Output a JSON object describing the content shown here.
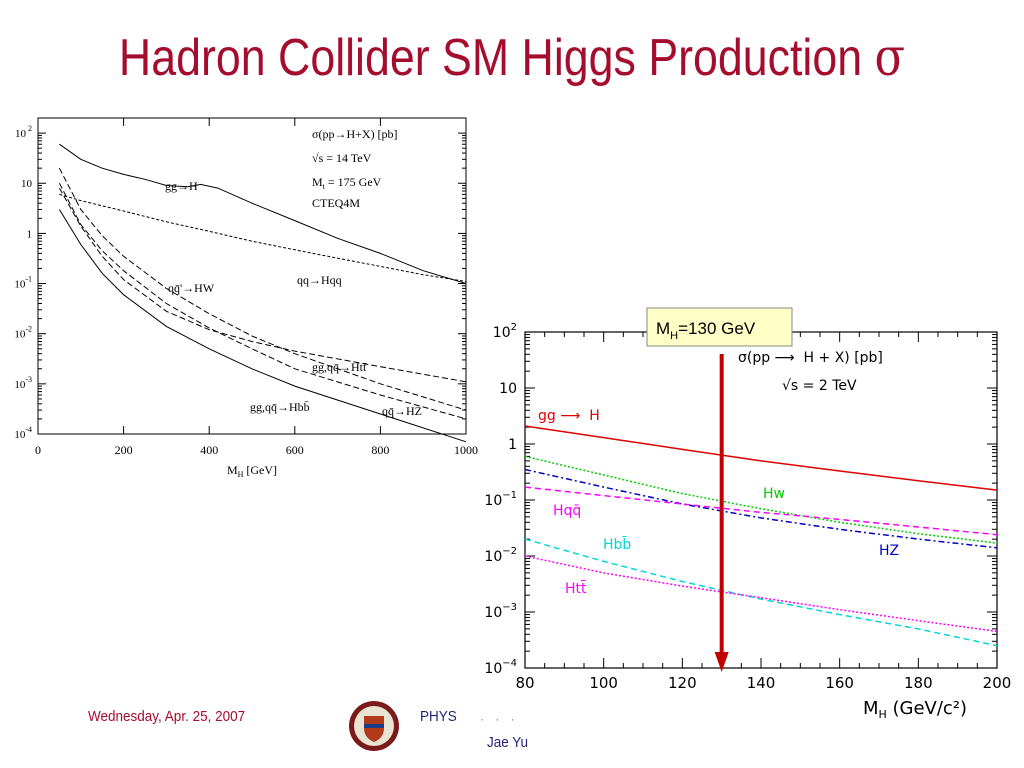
{
  "slide": {
    "title": "Hadron Collider SM Higgs Production ",
    "title_sigma": "σ",
    "footer_date": "Wednesday, Apr. 25, 2007",
    "footer_course": "PHYS",
    "footer_author": "Jae Yu",
    "footer_dots": "· · ·",
    "accent_color": "#a50d2e",
    "footer_color": "#23237a"
  },
  "annotation": {
    "label_main": "M",
    "label_sub": "H",
    "label_rest": "=130 GeV",
    "value": 130,
    "arrow_color": "#c00000",
    "box_color": "#ffffc8"
  },
  "chart_data": [
    {
      "type": "line",
      "x_scale": "linear",
      "y_scale": "log",
      "xlim": [
        0,
        1000
      ],
      "ylim": [
        0.0001,
        200
      ],
      "xlabel_main": "M",
      "xlabel_sub": "H",
      "xlabel_rest": " [GeV]",
      "x_ticks": [
        0,
        200,
        400,
        600,
        800,
        1000
      ],
      "y_ticks": [
        {
          "value": 100,
          "base": "10",
          "exp": " 2"
        },
        {
          "value": 10,
          "base": "10",
          "exp": ""
        },
        {
          "value": 1,
          "base": "1",
          "exp": ""
        },
        {
          "value": 0.1,
          "base": "10",
          "exp": "-1"
        },
        {
          "value": 0.01,
          "base": "10",
          "exp": "-2"
        },
        {
          "value": 0.001,
          "base": "10",
          "exp": "-3"
        },
        {
          "value": 0.0001,
          "base": "10",
          "exp": "-4"
        }
      ],
      "info_lines": [
        "σ(pp→H+X) [pb]",
        "√s = 14 TeV",
        "M",
        "CTEQ4M"
      ],
      "info_mt_sub": "t",
      "info_mt_rest": " = 175 GeV",
      "series": [
        {
          "name": "gg→H",
          "dash": "none",
          "x": [
            50,
            100,
            150,
            200,
            250,
            300,
            350,
            380,
            420,
            500,
            600,
            700,
            800,
            900,
            1000
          ],
          "y": [
            60,
            30,
            20,
            15,
            12,
            9,
            8.5,
            9.5,
            8,
            4,
            1.8,
            0.8,
            0.4,
            0.18,
            0.1
          ]
        },
        {
          "name": "qq→Hqq",
          "dash": "3,2",
          "x": [
            50,
            100,
            200,
            300,
            400,
            500,
            600,
            700,
            800,
            900,
            1000
          ],
          "y": [
            6,
            4.5,
            2.8,
            1.7,
            1.1,
            0.7,
            0.47,
            0.32,
            0.22,
            0.15,
            0.11
          ]
        },
        {
          "name": "qq̄'→HW",
          "dash": "6,3",
          "x": [
            50,
            100,
            150,
            200,
            300,
            400,
            500,
            600,
            800,
            1000
          ],
          "y": [
            20,
            3,
            0.9,
            0.35,
            0.08,
            0.025,
            0.009,
            0.004,
            0.001,
            0.0003
          ]
        },
        {
          "name": "qq̄→HZ",
          "dash": "6,3",
          "x": [
            50,
            100,
            150,
            200,
            300,
            400,
            500,
            600,
            800,
            1000
          ],
          "y": [
            10,
            1.5,
            0.45,
            0.18,
            0.04,
            0.013,
            0.005,
            0.002,
            0.0006,
            0.0002
          ]
        },
        {
          "name": "gg,qq̄→Htt̄",
          "dash": "6,3",
          "x": [
            50,
            100,
            150,
            200,
            300,
            400,
            500,
            600,
            800,
            1000
          ],
          "y": [
            8,
            1.4,
            0.35,
            0.12,
            0.028,
            0.012,
            0.007,
            0.0045,
            0.0022,
            0.0011
          ]
        },
        {
          "name": "gg,qq̄→Hbb̄",
          "dash": "none",
          "x": [
            50,
            100,
            150,
            200,
            300,
            400,
            500,
            600,
            800,
            1000
          ],
          "y": [
            3,
            0.6,
            0.16,
            0.06,
            0.014,
            0.005,
            0.002,
            0.0009,
            0.00025,
            7e-05
          ]
        }
      ],
      "labels": [
        {
          "text": "gg→H",
          "series": 0
        },
        {
          "text": "qq→Hqq",
          "series": 1
        },
        {
          "text": "qq̄'→HW",
          "series": 2
        },
        {
          "text": "gg,qq̄→Htt̄",
          "series": 4
        },
        {
          "text": "gg,qq̄→Hbb̄",
          "series": 5
        },
        {
          "text": "qq̄→HZ",
          "series": 3
        }
      ]
    },
    {
      "type": "line",
      "x_scale": "linear",
      "y_scale": "log",
      "xlim": [
        80,
        200
      ],
      "ylim": [
        0.0001,
        100
      ],
      "xlabel_main": "M",
      "xlabel_sub": "H",
      "xlabel_rest": " (GeV/c²)",
      "x_ticks": [
        80,
        100,
        120,
        140,
        160,
        180,
        200
      ],
      "y_ticks": [
        {
          "value": 100,
          "base": "10",
          "exp": "2"
        },
        {
          "value": 10,
          "base": "10",
          "exp": ""
        },
        {
          "value": 1,
          "base": "1",
          "exp": ""
        },
        {
          "value": 0.1,
          "base": "10",
          "exp": "−1"
        },
        {
          "value": 0.01,
          "base": "10",
          "exp": "−2"
        },
        {
          "value": 0.001,
          "base": "10",
          "exp": "−3"
        },
        {
          "value": 0.0001,
          "base": "10",
          "exp": "−4"
        }
      ],
      "info_lines": [
        "σ(pp ⟶  H + X) [pb]",
        "√s = 2 TeV"
      ],
      "series": [
        {
          "name": "gg ⟶  H",
          "color": "#e00000",
          "dash": "none",
          "x": [
            80,
            100,
            120,
            140,
            160,
            180,
            200
          ],
          "y": [
            2.1,
            1.3,
            0.8,
            0.5,
            0.33,
            0.22,
            0.15
          ]
        },
        {
          "name": "Hw",
          "color": "#00cc00",
          "dash": "2,2",
          "x": [
            80,
            100,
            120,
            140,
            160,
            180,
            200
          ],
          "y": [
            0.6,
            0.28,
            0.13,
            0.07,
            0.04,
            0.025,
            0.017
          ]
        },
        {
          "name": "HZ",
          "color": "#0000c0",
          "dash": "6,3,2,3",
          "x": [
            80,
            100,
            120,
            140,
            160,
            180,
            200
          ],
          "y": [
            0.35,
            0.17,
            0.085,
            0.048,
            0.03,
            0.02,
            0.014
          ]
        },
        {
          "name": "Hqq̄",
          "color": "#ff00ff",
          "dash": "6,4",
          "x": [
            80,
            100,
            120,
            140,
            160,
            180,
            200
          ],
          "y": [
            0.17,
            0.12,
            0.085,
            0.06,
            0.045,
            0.033,
            0.024
          ]
        },
        {
          "name": "Hbb̄",
          "color": "#00d8d8",
          "dash": "6,4",
          "x": [
            80,
            100,
            120,
            140,
            160,
            180,
            200
          ],
          "y": [
            0.02,
            0.008,
            0.0035,
            0.0017,
            0.0009,
            0.0005,
            0.00025
          ]
        },
        {
          "name": "Htt̄",
          "color": "#ff00ff",
          "dash": "2,2",
          "x": [
            80,
            100,
            120,
            140,
            160,
            180,
            200
          ],
          "y": [
            0.01,
            0.005,
            0.0029,
            0.0018,
            0.0011,
            0.0007,
            0.00045
          ]
        }
      ],
      "labels": [
        {
          "text": "gg ⟶  H",
          "color": "#e00000"
        },
        {
          "text": "Hw",
          "color": "#00cc00"
        },
        {
          "text": "Hqq̄",
          "color": "#ff00ff"
        },
        {
          "text": "HZ",
          "color": "#0000c0"
        },
        {
          "text": "Hbb̄",
          "color": "#00d8d8"
        },
        {
          "text": "Htt̄",
          "color": "#ff00ff"
        }
      ]
    }
  ]
}
